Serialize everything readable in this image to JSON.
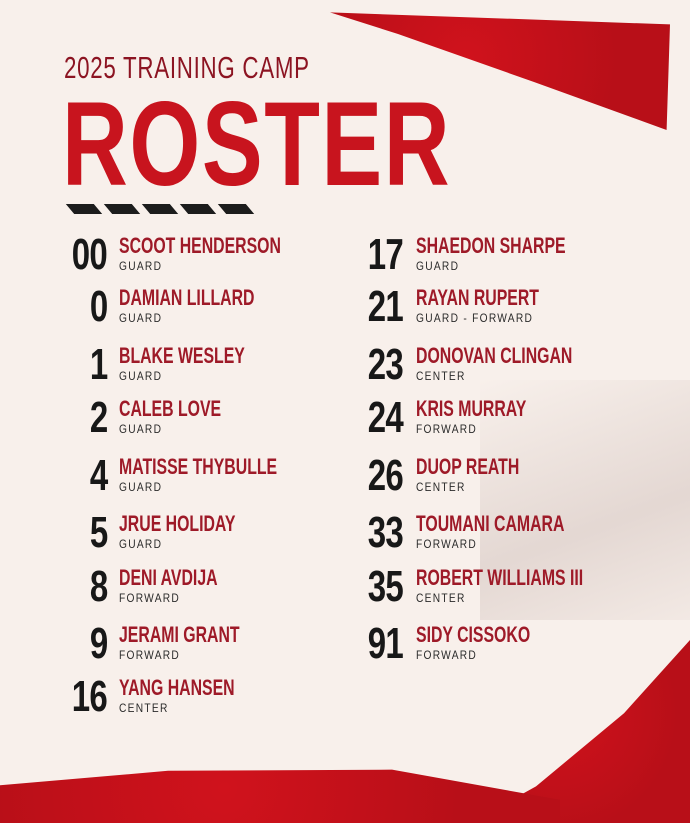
{
  "header": {
    "subtitle": "2025 TRAINING CAMP",
    "title": "ROSTER"
  },
  "colors": {
    "accent": "#c8141e",
    "name": "#9e1a28",
    "number": "#181818",
    "background": "#f8f0eb"
  },
  "roster": {
    "left": [
      {
        "number": "00",
        "name": "SCOOT HENDERSON",
        "position": "GUARD"
      },
      {
        "number": "0",
        "name": "DAMIAN LILLARD",
        "position": "GUARD"
      },
      {
        "number": "1",
        "name": "BLAKE WESLEY",
        "position": "GUARD"
      },
      {
        "number": "2",
        "name": "CALEB LOVE",
        "position": "GUARD"
      },
      {
        "number": "4",
        "name": "MATISSE THYBULLE",
        "position": "GUARD"
      },
      {
        "number": "5",
        "name": "JRUE HOLIDAY",
        "position": "GUARD"
      },
      {
        "number": "8",
        "name": "DENI AVDIJA",
        "position": "FORWARD"
      },
      {
        "number": "9",
        "name": "JERAMI GRANT",
        "position": "FORWARD"
      },
      {
        "number": "16",
        "name": "YANG HANSEN",
        "position": "CENTER"
      }
    ],
    "right": [
      {
        "number": "17",
        "name": "SHAEDON SHARPE",
        "position": "GUARD"
      },
      {
        "number": "21",
        "name": "RAYAN RUPERT",
        "position": "GUARD - FORWARD"
      },
      {
        "number": "23",
        "name": "DONOVAN CLINGAN",
        "position": "CENTER"
      },
      {
        "number": "24",
        "name": "KRIS MURRAY",
        "position": "FORWARD"
      },
      {
        "number": "26",
        "name": "DUOP REATH",
        "position": "CENTER"
      },
      {
        "number": "33",
        "name": "TOUMANI CAMARA",
        "position": "FORWARD"
      },
      {
        "number": "35",
        "name": "ROBERT WILLIAMS III",
        "position": "CENTER"
      },
      {
        "number": "91",
        "name": "SIDY CISSOKO",
        "position": "FORWARD"
      }
    ]
  }
}
